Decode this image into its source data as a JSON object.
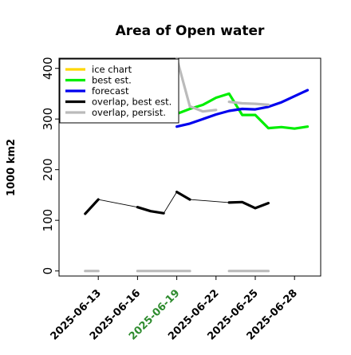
{
  "chart_data": {
    "type": "line",
    "title": "Area of Open water",
    "ylabel": "1000 km2",
    "xlabel": "",
    "ylim": [
      -10,
      420
    ],
    "xlim": [
      "2025-06-10",
      "2025-06-30"
    ],
    "yticks": [
      0,
      100,
      200,
      300,
      400
    ],
    "xticks": [
      "2025-06-13",
      "2025-06-16",
      "2025-06-19",
      "2025-06-22",
      "2025-06-25",
      "2025-06-28"
    ],
    "highlight_xtick": "2025-06-19",
    "highlight_color": "#2e8b2e",
    "legend_position": "top-left",
    "series": [
      {
        "name": "ice chart",
        "color": "#ffd700",
        "points": []
      },
      {
        "name": "best est.",
        "color": "#00ee00",
        "points": [
          [
            "2025-06-19",
            310
          ],
          [
            "2025-06-20",
            320
          ],
          [
            "2025-06-21",
            328
          ],
          [
            "2025-06-22",
            342
          ],
          [
            "2025-06-23",
            350
          ],
          [
            "2025-06-24",
            308
          ],
          [
            "2025-06-25",
            308
          ],
          [
            "2025-06-26",
            282
          ],
          [
            "2025-06-27",
            284
          ],
          [
            "2025-06-28",
            281
          ],
          [
            "2025-06-29",
            285
          ]
        ]
      },
      {
        "name": "forecast",
        "color": "#0000ee",
        "points": [
          [
            "2025-06-19",
            285
          ],
          [
            "2025-06-20",
            291
          ],
          [
            "2025-06-21",
            300
          ],
          [
            "2025-06-22",
            309
          ],
          [
            "2025-06-23",
            316
          ],
          [
            "2025-06-24",
            320
          ],
          [
            "2025-06-25",
            319
          ],
          [
            "2025-06-26",
            324
          ],
          [
            "2025-06-27",
            333
          ],
          [
            "2025-06-28",
            345
          ],
          [
            "2025-06-29",
            357
          ]
        ]
      },
      {
        "name": "overlap, best est.",
        "color": "#000000",
        "thin_connectors": true,
        "segments": [
          [
            [
              "2025-06-12",
              113
            ],
            [
              "2025-06-13",
              141
            ]
          ],
          [
            [
              "2025-06-16",
              126
            ],
            [
              "2025-06-17",
              118
            ],
            [
              "2025-06-18",
              114
            ]
          ],
          [
            [
              "2025-06-19",
              156
            ],
            [
              "2025-06-20",
              141
            ]
          ],
          [
            [
              "2025-06-23",
              135
            ],
            [
              "2025-06-24",
              136
            ],
            [
              "2025-06-25",
              124
            ],
            [
              "2025-06-26",
              134
            ]
          ]
        ]
      },
      {
        "name": "overlap, persist.",
        "color": "#bbbbbb",
        "segments": [
          [
            [
              "2025-06-12",
              0
            ],
            [
              "2025-06-13",
              0
            ]
          ],
          [
            [
              "2025-06-16",
              0
            ],
            [
              "2025-06-20",
              0
            ]
          ],
          [
            [
              "2025-06-23",
              0
            ],
            [
              "2025-06-26",
              0
            ]
          ],
          [
            [
              "2025-06-19",
              420
            ],
            [
              "2025-06-20",
              325
            ]
          ],
          [
            [
              "2025-06-20",
              325
            ],
            [
              "2025-06-21",
              315
            ],
            [
              "2025-06-22",
              318
            ]
          ],
          [
            [
              "2025-06-23",
              334
            ],
            [
              "2025-06-24",
              331
            ],
            [
              "2025-06-25",
              330
            ],
            [
              "2025-06-26",
              328
            ]
          ]
        ]
      }
    ]
  }
}
